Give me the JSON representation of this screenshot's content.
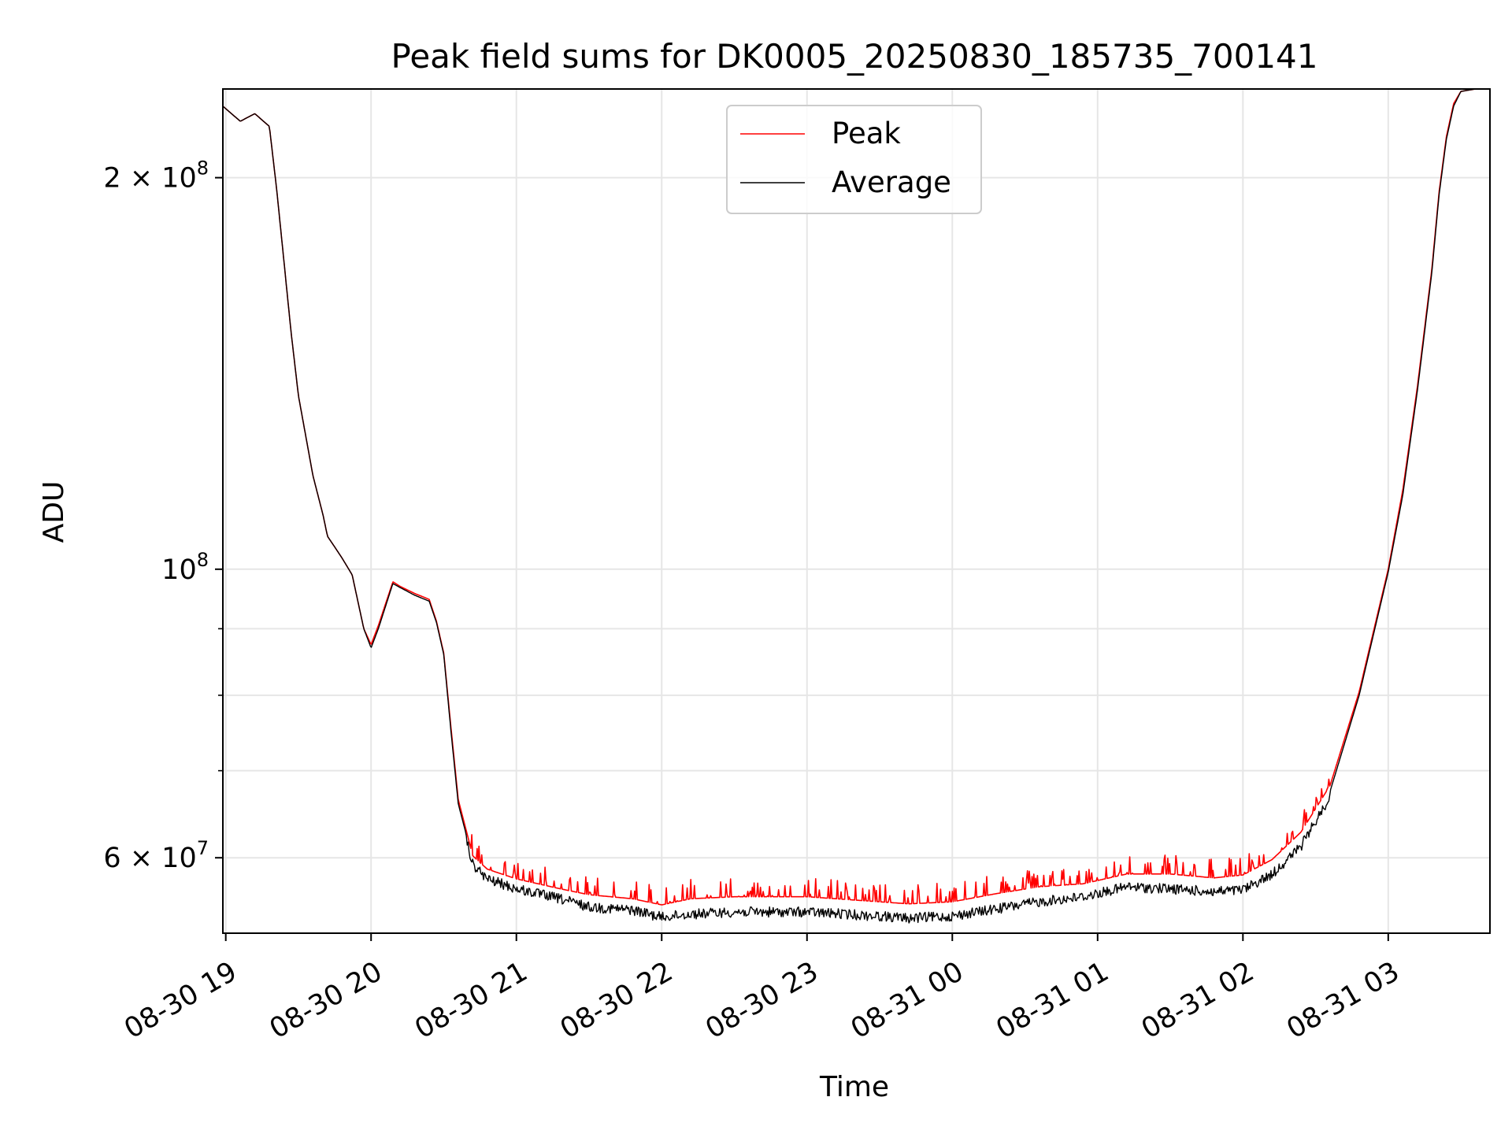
{
  "chart_data": {
    "type": "line",
    "title": "Peak field sums for DK0005_20250830_185735_700141",
    "xlabel": "Time",
    "ylabel": "ADU",
    "x_unit": "hours since 08-30 19:00",
    "xlim": [
      -0.02,
      8.7
    ],
    "ylim": [
      52500000,
      234000000
    ],
    "y_scale": "log",
    "grid": true,
    "legend_position": "upper-center",
    "x_ticks": [
      {
        "value": 0,
        "label": "08-30 19"
      },
      {
        "value": 1,
        "label": "08-30 20"
      },
      {
        "value": 2,
        "label": "08-30 21"
      },
      {
        "value": 3,
        "label": "08-30 22"
      },
      {
        "value": 4,
        "label": "08-30 23"
      },
      {
        "value": 5,
        "label": "08-31 00"
      },
      {
        "value": 6,
        "label": "08-31 01"
      },
      {
        "value": 7,
        "label": "08-31 02"
      },
      {
        "value": 8,
        "label": "08-31 03"
      }
    ],
    "y_major_ticks": [
      {
        "value": 60000000,
        "mantissa": "6",
        "exponent": "7"
      },
      {
        "value": 100000000,
        "mantissa": "",
        "exponent": "8"
      },
      {
        "value": 200000000,
        "mantissa": "2",
        "exponent": "8"
      }
    ],
    "y_minor_ticks": [
      70000000,
      80000000,
      90000000
    ],
    "series": [
      {
        "name": "Peak",
        "color": "#ff0000",
        "x": [
          -0.02,
          0.1,
          0.2,
          0.3,
          0.35,
          0.45,
          0.5,
          0.6,
          0.67,
          0.7,
          0.75,
          0.8,
          0.87,
          0.95,
          1.0,
          1.05,
          1.15,
          1.2,
          1.3,
          1.4,
          1.45,
          1.5,
          1.55,
          1.6,
          1.7,
          1.8,
          2.0,
          2.3,
          2.5,
          2.8,
          3.0,
          3.2,
          3.5,
          4.0,
          4.5,
          4.7,
          5.0,
          5.3,
          5.6,
          5.9,
          6.2,
          6.5,
          6.8,
          7.0,
          7.2,
          7.4,
          7.6,
          7.8,
          8.0,
          8.1,
          8.2,
          8.3,
          8.35,
          8.4,
          8.45,
          8.5,
          8.6,
          8.7
        ],
        "y": [
          227000000,
          221000000,
          224000000,
          219000000,
          196000000,
          152000000,
          136000000,
          118000000,
          110000000,
          106000000,
          104000000,
          102000000,
          99000000,
          90000000,
          87500000,
          90500000,
          97800000,
          97000000,
          95800000,
          94800000,
          91200000,
          86200000,
          75500000,
          66500000,
          60200000,
          58800000,
          57800000,
          56800000,
          56200000,
          55800000,
          55200000,
          55800000,
          56000000,
          56000000,
          55500000,
          55300000,
          55500000,
          56300000,
          57000000,
          57300000,
          58300000,
          58300000,
          57900000,
          58200000,
          59800000,
          62800000,
          68200000,
          80500000,
          100000000,
          115000000,
          138000000,
          170000000,
          195000000,
          215000000,
          228000000,
          233000000,
          234000000,
          234000000
        ]
      },
      {
        "name": "Average",
        "color": "#000000",
        "x": [
          -0.02,
          0.1,
          0.2,
          0.3,
          0.35,
          0.45,
          0.5,
          0.6,
          0.67,
          0.7,
          0.75,
          0.8,
          0.87,
          0.95,
          1.0,
          1.05,
          1.15,
          1.2,
          1.3,
          1.4,
          1.45,
          1.5,
          1.55,
          1.6,
          1.7,
          1.8,
          2.0,
          2.3,
          2.5,
          2.8,
          3.0,
          3.2,
          3.5,
          4.0,
          4.5,
          4.7,
          5.0,
          5.3,
          5.6,
          5.9,
          6.2,
          6.5,
          6.8,
          7.0,
          7.2,
          7.4,
          7.6,
          7.8,
          8.0,
          8.1,
          8.2,
          8.3,
          8.35,
          8.4,
          8.45,
          8.5,
          8.6,
          8.7
        ],
        "y": [
          227000000,
          221000000,
          224000000,
          219000000,
          196000000,
          152000000,
          136000000,
          118000000,
          110000000,
          106000000,
          104000000,
          102000000,
          99000000,
          90000000,
          87000000,
          90000000,
          97500000,
          96800000,
          95500000,
          94500000,
          91000000,
          86000000,
          75000000,
          66000000,
          59800000,
          58300000,
          57300000,
          56300000,
          55500000,
          55200000,
          54500000,
          54800000,
          55000000,
          55000000,
          54600000,
          54400000,
          54600000,
          55300000,
          56000000,
          56500000,
          57500000,
          57300000,
          57000000,
          57200000,
          58800000,
          61800000,
          67500000,
          80000000,
          99500000,
          114000000,
          137000000,
          169000000,
          194000000,
          214000000,
          227000000,
          233000000,
          234000000,
          234000000
        ]
      }
    ]
  }
}
